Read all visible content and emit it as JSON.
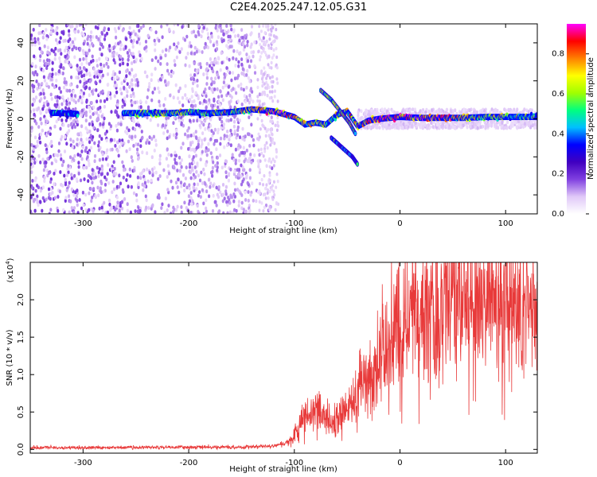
{
  "title": "C2E4.2025.247.12.05.G31",
  "chart_data": [
    {
      "type": "heatmap",
      "name": "spectrogram",
      "xlabel": "Height of straight line (km)",
      "ylabel": "Frequency (Hz)",
      "xlim": [
        -350,
        130
      ],
      "ylim": [
        -50,
        50
      ],
      "x_ticks": [
        -300,
        -200,
        -100,
        0,
        100
      ],
      "y_ticks": [
        -40,
        -20,
        0,
        20,
        40
      ],
      "x_tick_labels": [
        "-300",
        "-200",
        "-100",
        "0",
        "100"
      ],
      "y_tick_labels": [
        "-40",
        "-20",
        "0",
        "20",
        "40"
      ],
      "colorbar": {
        "label": "Normalized spectral amplitude",
        "range": [
          0,
          0.95
        ],
        "ticks": [
          0.0,
          0.2,
          0.4,
          0.6,
          0.8
        ],
        "tick_labels": [
          "0.0",
          "0.2",
          "0.4",
          "0.6",
          "0.8"
        ],
        "colors": [
          "#ffffff",
          "#e0c8f8",
          "#8040e0",
          "#4000c0",
          "#0000ff",
          "#00c0ff",
          "#00ff80",
          "#a0ff00",
          "#ffff00",
          "#ff8000",
          "#ff0000",
          "#ff00ff"
        ]
      },
      "carrier_track": [
        {
          "x": -345,
          "f": 3.5,
          "a": 0.3
        },
        {
          "x": -320,
          "f": 3.0,
          "a": 0.35
        },
        {
          "x": -300,
          "f": 2.5,
          "a": 0.3
        },
        {
          "x": -260,
          "f": 3.0,
          "a": 0.4
        },
        {
          "x": -240,
          "f": 3.0,
          "a": 0.55
        },
        {
          "x": -220,
          "f": 3.0,
          "a": 0.55
        },
        {
          "x": -200,
          "f": 3.5,
          "a": 0.55
        },
        {
          "x": -180,
          "f": 3.0,
          "a": 0.5
        },
        {
          "x": -160,
          "f": 3.5,
          "a": 0.55
        },
        {
          "x": -140,
          "f": 5.0,
          "a": 0.75
        },
        {
          "x": -120,
          "f": 4.0,
          "a": 0.8
        },
        {
          "x": -100,
          "f": 1.0,
          "a": 0.75
        },
        {
          "x": -90,
          "f": -3.0,
          "a": 0.7
        },
        {
          "x": -80,
          "f": -2.0,
          "a": 0.65
        },
        {
          "x": -70,
          "f": -3.0,
          "a": 0.6
        },
        {
          "x": -60,
          "f": 2.0,
          "a": 0.65
        },
        {
          "x": -50,
          "f": 4.0,
          "a": 0.6
        },
        {
          "x": -40,
          "f": -4.0,
          "a": 0.7
        },
        {
          "x": -30,
          "f": -1.0,
          "a": 0.8
        },
        {
          "x": -20,
          "f": 0.0,
          "a": 0.85
        },
        {
          "x": 0,
          "f": 1.0,
          "a": 0.85
        },
        {
          "x": 20,
          "f": 0.5,
          "a": 0.8
        },
        {
          "x": 40,
          "f": 0.5,
          "a": 0.85
        },
        {
          "x": 60,
          "f": 0.5,
          "a": 0.7
        },
        {
          "x": 80,
          "f": 1.0,
          "a": 0.6
        },
        {
          "x": 100,
          "f": 1.0,
          "a": 0.55
        },
        {
          "x": 130,
          "f": 1.0,
          "a": 0.5
        }
      ],
      "branch_tracks": [
        {
          "points": [
            [
              -75,
              15
            ],
            [
              -65,
              10
            ],
            [
              -55,
              3
            ],
            [
              -48,
              -2
            ],
            [
              -42,
              -8
            ]
          ],
          "a": 0.55
        },
        {
          "points": [
            [
              -65,
              -10
            ],
            [
              -55,
              -15
            ],
            [
              -45,
              -20
            ],
            [
              -40,
              -24
            ]
          ],
          "a": 0.35
        }
      ]
    },
    {
      "type": "line",
      "name": "snr",
      "xlabel": "Height of straight line (km)",
      "ylabel": "SNR (10 * v/v)",
      "y_multiplier": "(x10",
      "y_multiplier_exp": "4",
      "y_multiplier_close": ")",
      "xlim": [
        -350,
        130
      ],
      "ylim": [
        -0.05,
        2.5
      ],
      "x_ticks": [
        -300,
        -200,
        -100,
        0,
        100
      ],
      "y_ticks": [
        0.0,
        0.5,
        1.0,
        1.5,
        2.0
      ],
      "x_tick_labels": [
        "-300",
        "-200",
        "-100",
        "0",
        "100"
      ],
      "y_tick_labels": [
        "0.0",
        "0.5",
        "1.0",
        "1.5",
        "2.0"
      ],
      "color": "#e83a3a",
      "envelope": [
        {
          "x": -350,
          "y": 0.02
        },
        {
          "x": -200,
          "y": 0.03
        },
        {
          "x": -150,
          "y": 0.03
        },
        {
          "x": -120,
          "y": 0.05
        },
        {
          "x": -105,
          "y": 0.1
        },
        {
          "x": -95,
          "y": 0.3
        },
        {
          "x": -85,
          "y": 0.5
        },
        {
          "x": -75,
          "y": 0.5
        },
        {
          "x": -65,
          "y": 0.35
        },
        {
          "x": -55,
          "y": 0.45
        },
        {
          "x": -45,
          "y": 0.6
        },
        {
          "x": -35,
          "y": 0.9
        },
        {
          "x": -25,
          "y": 1.0
        },
        {
          "x": -15,
          "y": 1.3
        },
        {
          "x": -5,
          "y": 1.5
        },
        {
          "x": 5,
          "y": 1.6
        },
        {
          "x": 15,
          "y": 1.85
        },
        {
          "x": 30,
          "y": 1.9
        },
        {
          "x": 50,
          "y": 2.0
        },
        {
          "x": 70,
          "y": 1.95
        },
        {
          "x": 90,
          "y": 1.95
        },
        {
          "x": 110,
          "y": 1.9
        },
        {
          "x": 130,
          "y": 1.85
        }
      ]
    }
  ]
}
